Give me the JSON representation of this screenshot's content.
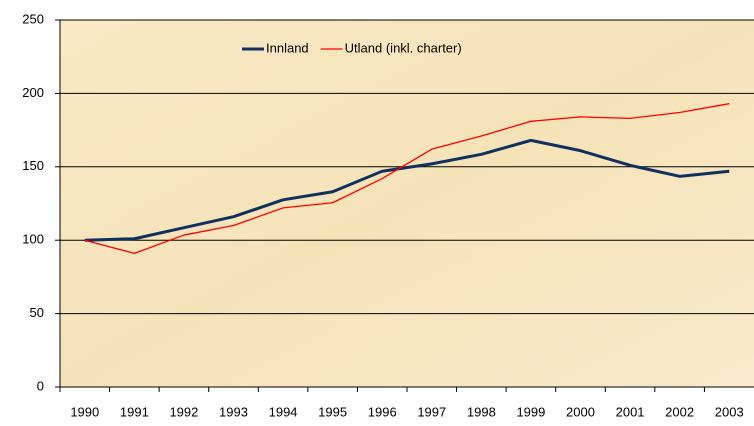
{
  "chart_data": {
    "type": "line",
    "categories": [
      "1990",
      "1991",
      "1992",
      "1993",
      "1994",
      "1995",
      "1996",
      "1997",
      "1998",
      "1999",
      "2000",
      "2001",
      "2002",
      "2003"
    ],
    "series": [
      {
        "name": "Innland",
        "color": "#10305e",
        "values": [
          100,
          101,
          108.5,
          116,
          127.5,
          133,
          147,
          152,
          158.5,
          168,
          161,
          151,
          143.5,
          147
        ]
      },
      {
        "name": "Utland (inkl. charter)",
        "color": "#ff0000",
        "values": [
          100,
          91,
          103.5,
          110,
          122,
          125.5,
          142,
          162,
          171,
          181,
          184,
          183,
          187,
          193
        ]
      }
    ],
    "ylim": [
      0,
      250
    ],
    "yticks": [
      0,
      50,
      100,
      150,
      200,
      250
    ],
    "grid": true,
    "legend": "top"
  }
}
